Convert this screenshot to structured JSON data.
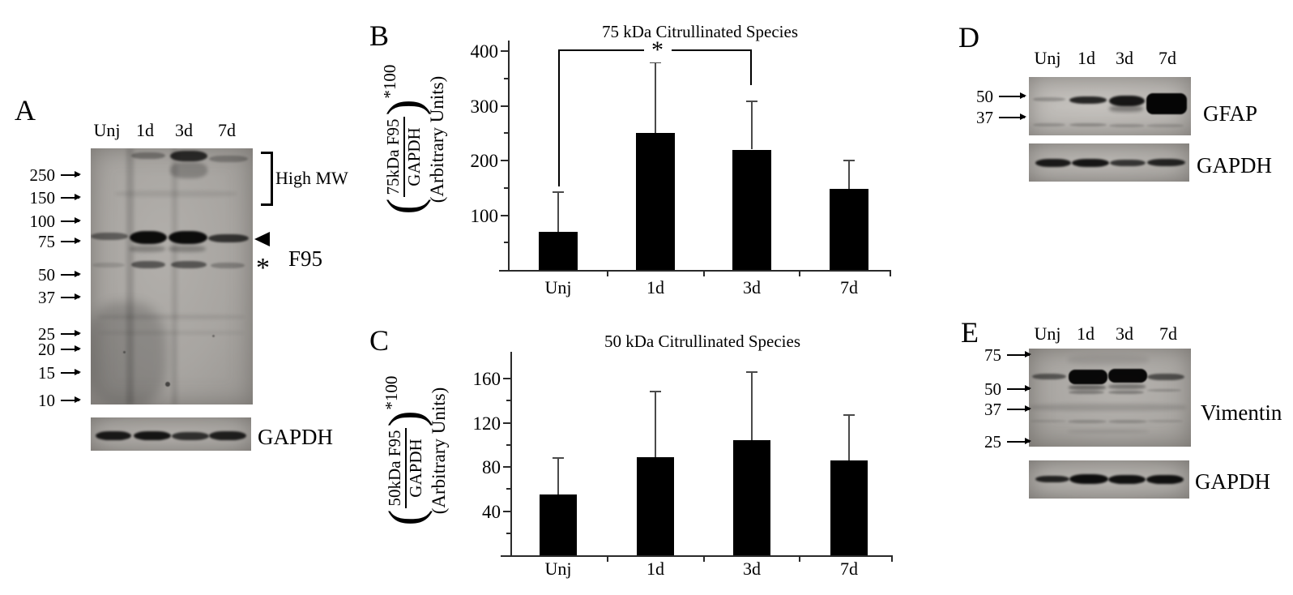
{
  "figure": {
    "panels": {
      "a": {
        "letter": "A",
        "lanes": [
          "Unj",
          "1d",
          "3d",
          "7d"
        ],
        "mw_markers": [
          "250",
          "150",
          "100",
          "75",
          "50",
          "37",
          "25",
          "20",
          "15",
          "10"
        ],
        "high_mw_label": "High MW",
        "band_label": "F95",
        "asterisk": "*",
        "control_label": "GAPDH"
      },
      "b": {
        "letter": "B"
      },
      "c": {
        "letter": "C"
      },
      "d": {
        "letter": "D",
        "lanes": [
          "Unj",
          "1d",
          "3d",
          "7d"
        ],
        "mw_markers": [
          "50",
          "37"
        ],
        "protein_label": "GFAP",
        "control_label": "GAPDH"
      },
      "e": {
        "letter": "E",
        "lanes": [
          "Unj",
          "1d",
          "3d",
          "7d"
        ],
        "mw_markers": [
          "75",
          "50",
          "37",
          "25"
        ],
        "protein_label": "Vimentin",
        "control_label": "GAPDH"
      }
    },
    "colors": {
      "bar": "#000000",
      "error_bar": "#4a4a4a",
      "axis": "#2a2a2a"
    }
  },
  "chart_data": [
    {
      "type": "bar",
      "title": "75 kDa Citrullinated Species",
      "categories": [
        "Unj",
        "1d",
        "3d",
        "7d"
      ],
      "values": [
        70,
        250,
        220,
        148
      ],
      "errors_plus": [
        72,
        130,
        88,
        52
      ],
      "ylabel_numerator": "75kDa F95",
      "ylabel_denominator": "GAPDH",
      "ylabel_multiplier": "*100",
      "ylabel_units": "(Arbitrary Units)",
      "yticks": [
        100,
        200,
        300,
        400
      ],
      "minor_yticks": [
        50,
        150,
        250,
        350
      ],
      "ylim": [
        0,
        400
      ],
      "grid": false,
      "legend": null,
      "significance": {
        "from": "Unj",
        "to": "3d",
        "label": "*"
      }
    },
    {
      "type": "bar",
      "title": "50 kDa Citrullinated Species",
      "categories": [
        "Unj",
        "1d",
        "3d",
        "7d"
      ],
      "values": [
        55,
        89,
        104,
        86
      ],
      "errors_plus": [
        33,
        59,
        62,
        41
      ],
      "ylabel_numerator": "50kDa F95",
      "ylabel_denominator": "GAPDH",
      "ylabel_multiplier": "*100",
      "ylabel_units": "(Arbitrary Units)",
      "yticks": [
        40,
        80,
        120,
        160
      ],
      "minor_yticks": [
        20,
        60,
        100,
        140
      ],
      "ylim": [
        0,
        183
      ],
      "grid": false,
      "legend": null,
      "significance": null
    }
  ]
}
